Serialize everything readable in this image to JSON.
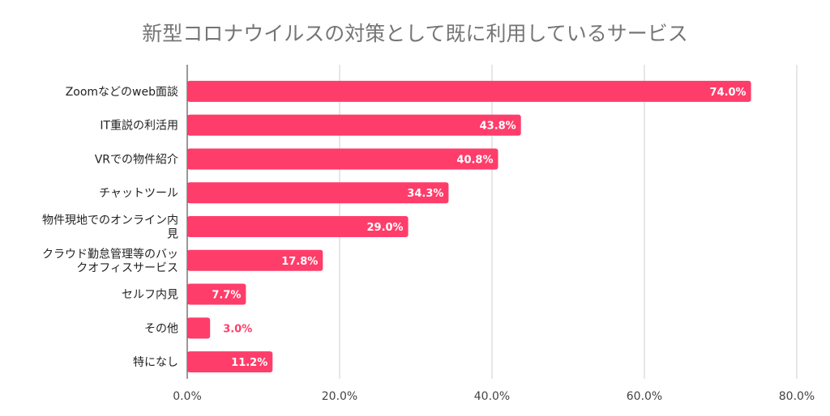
{
  "chart_data": {
    "type": "bar",
    "orientation": "horizontal",
    "title": "新型コロナウイルスの対策として既に利用しているサービス",
    "categories": [
      [
        "Zoomなどのweb面談"
      ],
      [
        "IT重説の利活用"
      ],
      [
        "VRでの物件紹介"
      ],
      [
        "チャットツール"
      ],
      [
        "物件現地でのオンライン内",
        "見"
      ],
      [
        "クラウド勤怠管理等のバッ",
        "クオフィスサービス"
      ],
      [
        "セルフ内見"
      ],
      [
        "その他"
      ],
      [
        "特になし"
      ]
    ],
    "values": [
      74.0,
      43.8,
      40.8,
      34.3,
      29.0,
      17.8,
      7.7,
      3.0,
      11.2
    ],
    "value_labels": [
      "74.0%",
      "43.8%",
      "40.8%",
      "34.3%",
      "29.0%",
      "17.8%",
      "7.7%",
      "3.0%",
      "11.2%"
    ],
    "xlim": [
      0,
      80
    ],
    "xticks": [
      0,
      20,
      40,
      60,
      80
    ],
    "xtick_labels": [
      "0.0%",
      "20.0%",
      "40.0%",
      "60.0%",
      "80.0%"
    ],
    "grid": true,
    "bar_color": "#ff3d6a"
  }
}
